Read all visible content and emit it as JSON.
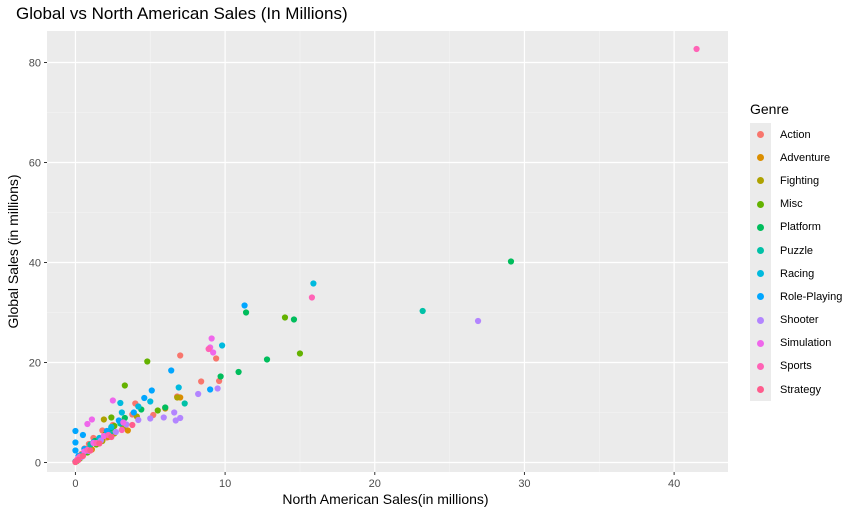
{
  "chart_data": {
    "type": "scatter",
    "title": "Global vs North American Sales (In Millions)",
    "xlabel": "North American Sales(in millions)",
    "ylabel": "Global Sales (in millions)",
    "xlim": [
      -1.9,
      43.6
    ],
    "ylim": [
      -1.9,
      86.3
    ],
    "x_ticks": [
      0,
      10,
      20,
      30,
      40
    ],
    "y_ticks": [
      0,
      20,
      40,
      60,
      80
    ],
    "grid": true,
    "legend": {
      "title": "Genre",
      "position": "right"
    },
    "series": [
      {
        "name": "Action",
        "color": "#F8766D",
        "points": [
          [
            7.0,
            21.4
          ],
          [
            9.6,
            16.3
          ],
          [
            9.4,
            20.8
          ],
          [
            8.4,
            16.2
          ],
          [
            6.8,
            13.2
          ],
          [
            4.0,
            11.8
          ],
          [
            3.8,
            9.6
          ],
          [
            5.2,
            9.5
          ],
          [
            3.0,
            8.2
          ],
          [
            2.5,
            7.5
          ],
          [
            1.8,
            6.4
          ],
          [
            1.2,
            4.9
          ],
          [
            0.9,
            3.7
          ],
          [
            0.6,
            2.8
          ],
          [
            0.4,
            1.7
          ],
          [
            0.2,
            0.9
          ],
          [
            0.1,
            0.4
          ],
          [
            2.1,
            5.0
          ],
          [
            1.5,
            4.1
          ],
          [
            0.7,
            2.2
          ]
        ]
      },
      {
        "name": "Adventure",
        "color": "#DB8E00",
        "points": [
          [
            6.0,
            10.8
          ],
          [
            7.0,
            13.0
          ],
          [
            3.5,
            6.4
          ],
          [
            2.2,
            5.1
          ],
          [
            1.1,
            2.6
          ],
          [
            0.5,
            1.4
          ],
          [
            0.2,
            0.7
          ],
          [
            0.0,
            0.1
          ]
        ]
      },
      {
        "name": "Fighting",
        "color": "#AEA200",
        "points": [
          [
            6.8,
            13.0
          ],
          [
            4.1,
            9.2
          ],
          [
            3.2,
            7.0
          ],
          [
            2.6,
            5.8
          ],
          [
            1.8,
            4.3
          ],
          [
            1.0,
            2.5
          ],
          [
            0.5,
            1.5
          ],
          [
            0.2,
            0.6
          ],
          [
            1.9,
            8.6
          ]
        ]
      },
      {
        "name": "Misc",
        "color": "#64B200",
        "points": [
          [
            15.0,
            21.8
          ],
          [
            14.0,
            29.0
          ],
          [
            4.8,
            20.2
          ],
          [
            3.3,
            15.4
          ],
          [
            5.5,
            10.4
          ],
          [
            2.6,
            7.3
          ],
          [
            2.0,
            5.6
          ],
          [
            1.4,
            3.6
          ],
          [
            0.8,
            2.0
          ],
          [
            0.3,
            0.8
          ],
          [
            0.1,
            0.3
          ],
          [
            2.4,
            9.0
          ]
        ]
      },
      {
        "name": "Platform",
        "color": "#00BD5C",
        "points": [
          [
            29.1,
            40.2
          ],
          [
            11.4,
            30.0
          ],
          [
            14.6,
            28.6
          ],
          [
            12.8,
            20.6
          ],
          [
            10.9,
            18.1
          ],
          [
            9.7,
            17.2
          ],
          [
            6.0,
            11.0
          ],
          [
            4.4,
            10.6
          ],
          [
            3.3,
            8.9
          ],
          [
            2.4,
            6.9
          ],
          [
            1.3,
            4.3
          ],
          [
            0.6,
            2.0
          ],
          [
            0.2,
            0.8
          ]
        ]
      },
      {
        "name": "Puzzle",
        "color": "#00C1A7",
        "points": [
          [
            23.2,
            30.3
          ],
          [
            7.3,
            11.8
          ],
          [
            3.0,
            7.8
          ],
          [
            2.3,
            5.8
          ],
          [
            1.0,
            3.6
          ],
          [
            0.4,
            1.5
          ],
          [
            0.1,
            0.4
          ]
        ]
      },
      {
        "name": "Racing",
        "color": "#00BADE",
        "points": [
          [
            15.9,
            35.8
          ],
          [
            9.8,
            23.4
          ],
          [
            6.9,
            15.0
          ],
          [
            5.0,
            12.2
          ],
          [
            4.2,
            11.2
          ],
          [
            3.1,
            10.0
          ],
          [
            3.0,
            11.9
          ],
          [
            2.4,
            7.1
          ],
          [
            1.6,
            4.9
          ],
          [
            0.8,
            2.6
          ],
          [
            0.3,
            1.1
          ],
          [
            0.0,
            0.2
          ]
        ]
      },
      {
        "name": "Role-Playing",
        "color": "#00A6FF",
        "points": [
          [
            11.3,
            31.4
          ],
          [
            6.4,
            18.4
          ],
          [
            9.0,
            14.6
          ],
          [
            5.1,
            14.4
          ],
          [
            4.6,
            12.9
          ],
          [
            3.9,
            10.0
          ],
          [
            2.9,
            8.4
          ],
          [
            2.1,
            6.3
          ],
          [
            1.2,
            4.0
          ],
          [
            0.6,
            2.7
          ],
          [
            0.2,
            1.3
          ],
          [
            0.0,
            6.3
          ],
          [
            0.0,
            4.0
          ],
          [
            0.0,
            2.4
          ],
          [
            0.5,
            5.5
          ]
        ]
      },
      {
        "name": "Shooter",
        "color": "#B385FF",
        "points": [
          [
            26.9,
            28.3
          ],
          [
            9.5,
            14.8
          ],
          [
            8.2,
            13.7
          ],
          [
            6.6,
            10.0
          ],
          [
            7.0,
            8.9
          ],
          [
            5.9,
            9.0
          ],
          [
            4.2,
            8.5
          ],
          [
            3.4,
            7.6
          ],
          [
            2.7,
            6.1
          ],
          [
            1.7,
            4.4
          ],
          [
            0.9,
            2.3
          ],
          [
            0.4,
            1.1
          ],
          [
            6.7,
            8.4
          ],
          [
            5.0,
            8.8
          ]
        ]
      },
      {
        "name": "Simulation",
        "color": "#EF67EB",
        "points": [
          [
            9.1,
            24.8
          ],
          [
            9.0,
            23.0
          ],
          [
            9.2,
            22.0
          ],
          [
            3.2,
            8.0
          ],
          [
            1.1,
            8.6
          ],
          [
            0.8,
            7.7
          ],
          [
            1.9,
            5.3
          ],
          [
            1.2,
            3.9
          ],
          [
            0.6,
            2.2
          ],
          [
            0.2,
            0.9
          ],
          [
            2.5,
            12.4
          ]
        ]
      },
      {
        "name": "Sports",
        "color": "#FF63B6",
        "points": [
          [
            41.5,
            82.7
          ],
          [
            15.8,
            33.0
          ],
          [
            8.9,
            22.7
          ],
          [
            3.1,
            6.5
          ],
          [
            2.2,
            5.5
          ],
          [
            1.4,
            3.9
          ],
          [
            0.8,
            2.5
          ],
          [
            0.3,
            1.2
          ],
          [
            0.1,
            0.5
          ]
        ]
      },
      {
        "name": "Strategy",
        "color": "#FF5C8D",
        "points": [
          [
            3.8,
            7.5
          ],
          [
            2.4,
            5.1
          ],
          [
            1.6,
            3.8
          ],
          [
            1.0,
            2.4
          ],
          [
            0.5,
            1.3
          ],
          [
            0.2,
            0.5
          ],
          [
            0.0,
            0.1
          ]
        ]
      }
    ]
  }
}
